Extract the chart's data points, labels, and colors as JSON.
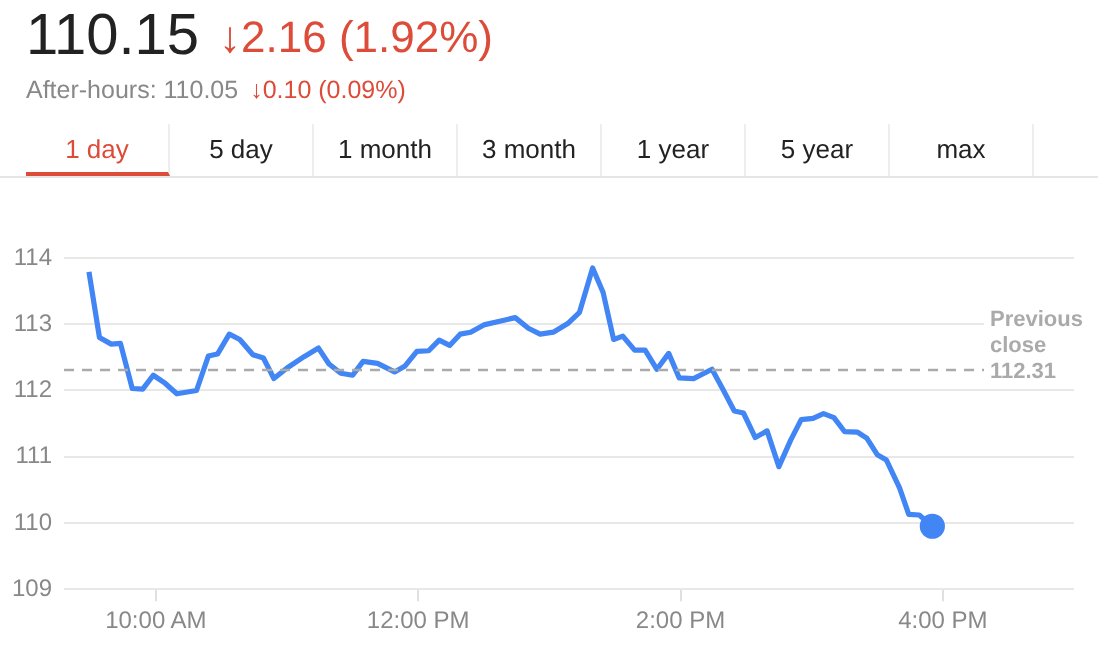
{
  "chart_data": {
    "type": "line",
    "title": "110.15",
    "annotations": [
      "↓2.16 (1.92%)",
      "After-hours: 110.05",
      "↓0.10 (0.09%)",
      "1 day",
      "5 day",
      "1 month",
      "3 month",
      "1 year",
      "5 year",
      "max"
    ],
    "series": [
      {
        "color": "#4285f4",
        "x": [
          9.49,
          9.57,
          9.66,
          9.73,
          9.82,
          9.9,
          9.98,
          10.07,
          10.16,
          10.31,
          10.4,
          10.47,
          10.56,
          10.64,
          10.74,
          10.82,
          10.9,
          11.0,
          11.13,
          11.24,
          11.32,
          11.41,
          11.5,
          11.58,
          11.69,
          11.82,
          11.9,
          11.99,
          12.08,
          12.16,
          12.24,
          12.32,
          12.4,
          12.5,
          12.63,
          12.74,
          12.84,
          12.93,
          13.03,
          13.14,
          13.23,
          13.33,
          13.41,
          13.49,
          13.56,
          13.65,
          13.73,
          13.82,
          13.91,
          13.99,
          14.1,
          14.24,
          14.32,
          14.41,
          14.48,
          14.57,
          14.66,
          14.75,
          14.84,
          14.92,
          15.01,
          15.09,
          15.17,
          15.25,
          15.35,
          15.42,
          15.5,
          15.57,
          15.67,
          15.74,
          15.82,
          15.92
        ],
        "values": [
          113.79,
          112.8,
          112.7,
          112.71,
          112.03,
          112.02,
          112.23,
          112.11,
          111.95,
          112.0,
          112.52,
          112.55,
          112.85,
          112.77,
          112.54,
          112.49,
          112.18,
          112.34,
          112.51,
          112.64,
          112.4,
          112.26,
          112.23,
          112.44,
          112.41,
          112.28,
          112.37,
          112.59,
          112.6,
          112.76,
          112.68,
          112.85,
          112.88,
          112.99,
          113.05,
          113.1,
          112.94,
          112.85,
          112.88,
          113.01,
          113.18,
          113.85,
          113.48,
          112.77,
          112.82,
          112.61,
          112.61,
          112.32,
          112.56,
          112.19,
          112.18,
          112.32,
          112.03,
          111.69,
          111.66,
          111.29,
          111.39,
          110.85,
          111.25,
          111.56,
          111.58,
          111.65,
          111.59,
          111.38,
          111.37,
          111.28,
          111.03,
          110.95,
          110.53,
          110.13,
          110.12,
          109.95
        ]
      }
    ],
    "xlim": [
      9.3,
      17
    ],
    "xticks": [
      {
        "value": 10,
        "label": "10:00 AM"
      },
      {
        "value": 12,
        "label": "12:00 PM"
      },
      {
        "value": 14,
        "label": "2:00 PM"
      },
      {
        "value": 16,
        "label": "4:00 PM"
      }
    ],
    "ylim": [
      109,
      114
    ],
    "yticks": [
      109,
      110,
      111,
      112,
      113,
      114
    ],
    "ref_lines": [
      {
        "axis": "y",
        "value": 112.31,
        "label": "Previous close 112.31",
        "color": "#aaaaaa",
        "line_style": "dashed"
      }
    ],
    "grid": "y",
    "legend": false,
    "line_style": "solid"
  }
}
